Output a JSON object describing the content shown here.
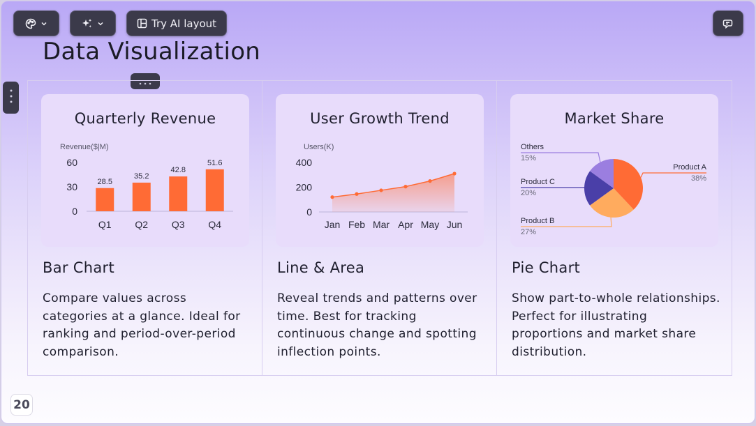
{
  "toolbar": {
    "theme_button_icon": "palette-icon",
    "ai_button_icon": "sparkles-icon",
    "layout_button_label": "Try AI layout",
    "layout_button_icon": "layout-icon",
    "comment_button_icon": "comment-icon"
  },
  "slide": {
    "title": "Data Visualization",
    "page_number": "20"
  },
  "columns": [
    {
      "card_title": "Quarterly Revenue",
      "heading": "Bar Chart",
      "description": "Compare values across categories at a glance. Ideal for ranking and period-over-period comparison."
    },
    {
      "card_title": "User Growth Trend",
      "heading": "Line & Area",
      "description": "Reveal trends and patterns over time. Best for tracking continuous change and spotting inflection points."
    },
    {
      "card_title": "Market Share",
      "heading": "Pie Chart",
      "description": "Show part-to-whole relationships. Perfect for illustrating proportions and market share distribution."
    }
  ],
  "colors": {
    "accent": "#ff6b35",
    "indigo": "#4a3fa8",
    "lavender": "#9b7ee0",
    "peach": "#ffab5e"
  },
  "chart_data": [
    {
      "type": "bar",
      "title": "Quarterly Revenue",
      "ylabel": "Revenue($|M)",
      "categories": [
        "Q1",
        "Q2",
        "Q3",
        "Q4"
      ],
      "values": [
        28.5,
        35.2,
        42.8,
        51.6
      ],
      "yticks": [
        0,
        30,
        60
      ],
      "ylim": [
        0,
        60
      ],
      "grid": false
    },
    {
      "type": "area",
      "title": "User Growth Trend",
      "ylabel": "Users(K)",
      "categories": [
        "Jan",
        "Feb",
        "Mar",
        "Apr",
        "May",
        "Jun"
      ],
      "values": [
        120,
        145,
        175,
        205,
        250,
        310
      ],
      "yticks": [
        0,
        200,
        400
      ],
      "ylim": [
        0,
        400
      ],
      "grid": false
    },
    {
      "type": "pie",
      "title": "Market Share",
      "slices": [
        {
          "label": "Product A",
          "value": 38,
          "text": "38%",
          "color": "#ff6b35"
        },
        {
          "label": "Product B",
          "value": 27,
          "text": "27%",
          "color": "#ffab5e"
        },
        {
          "label": "Product C",
          "value": 20,
          "text": "20%",
          "color": "#4a3fa8"
        },
        {
          "label": "Others",
          "value": 15,
          "text": "15%",
          "color": "#9b7ee0"
        }
      ]
    }
  ]
}
